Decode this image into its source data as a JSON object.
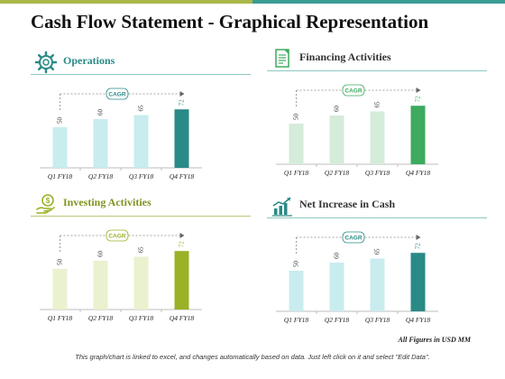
{
  "title": "Cash Flow Statement  - Graphical Representation",
  "footnote": "All Figures in USD MM",
  "disclaimer": "This graph/chart is linked to excel, and changes automatically based on data. Just left click on it and select \"Edit Data\".",
  "colors": {
    "teal": "#3a9c95",
    "teal_dark": "#2a8a86",
    "teal_light": "#c9ecef",
    "green": "#3daa5e",
    "green_light": "#d4ecd9",
    "olive": "#9bb127",
    "olive_light": "#eaf1cf",
    "rule_teal": "#8dc8c4",
    "rule_olive": "#b9c87a"
  },
  "panels": [
    {
      "id": "operations",
      "title": "Operations",
      "icon": "gear-icon",
      "accent": "#2a8a86",
      "light": "#c9ecef",
      "rule": "#8dc8c4",
      "title_color": "#2a8a86"
    },
    {
      "id": "financing",
      "title": "Financing Activities",
      "icon": "document-icon",
      "accent": "#3daa5e",
      "light": "#d4ecd9",
      "rule": "#8dc8c4",
      "title_color": "#333333"
    },
    {
      "id": "investing",
      "title": "Investing Activities",
      "icon": "money-hand-icon",
      "accent": "#9bb127",
      "light": "#eaf1cf",
      "rule": "#b9c87a",
      "title_color": "#7f9420"
    },
    {
      "id": "net",
      "title": "Net Increase in Cash",
      "icon": "growth-chart-icon",
      "accent": "#2a8a86",
      "light": "#c9ecef",
      "rule": "#8dc8c4",
      "title_color": "#333333"
    }
  ],
  "chart_data": [
    {
      "type": "bar",
      "categories": [
        "Q1 FY18",
        "Q2 FY18",
        "Q3 FY18",
        "Q4 FY18"
      ],
      "values": [
        50,
        60,
        65,
        72
      ],
      "annotation": "CAGR"
    },
    {
      "type": "bar",
      "categories": [
        "Q1 FY18",
        "Q2 FY18",
        "Q3 FY18",
        "Q4 FY18"
      ],
      "values": [
        50,
        60,
        65,
        72
      ],
      "annotation": "CAGR"
    },
    {
      "type": "bar",
      "categories": [
        "Q1 FY18",
        "Q2 FY18",
        "Q3 FY18",
        "Q4 FY18"
      ],
      "values": [
        50,
        60,
        65,
        72
      ],
      "annotation": "CAGR"
    },
    {
      "type": "bar",
      "categories": [
        "Q1 FY18",
        "Q2 FY18",
        "Q3 FY18",
        "Q4 FY18"
      ],
      "values": [
        50,
        60,
        65,
        72
      ],
      "annotation": "CAGR"
    }
  ]
}
